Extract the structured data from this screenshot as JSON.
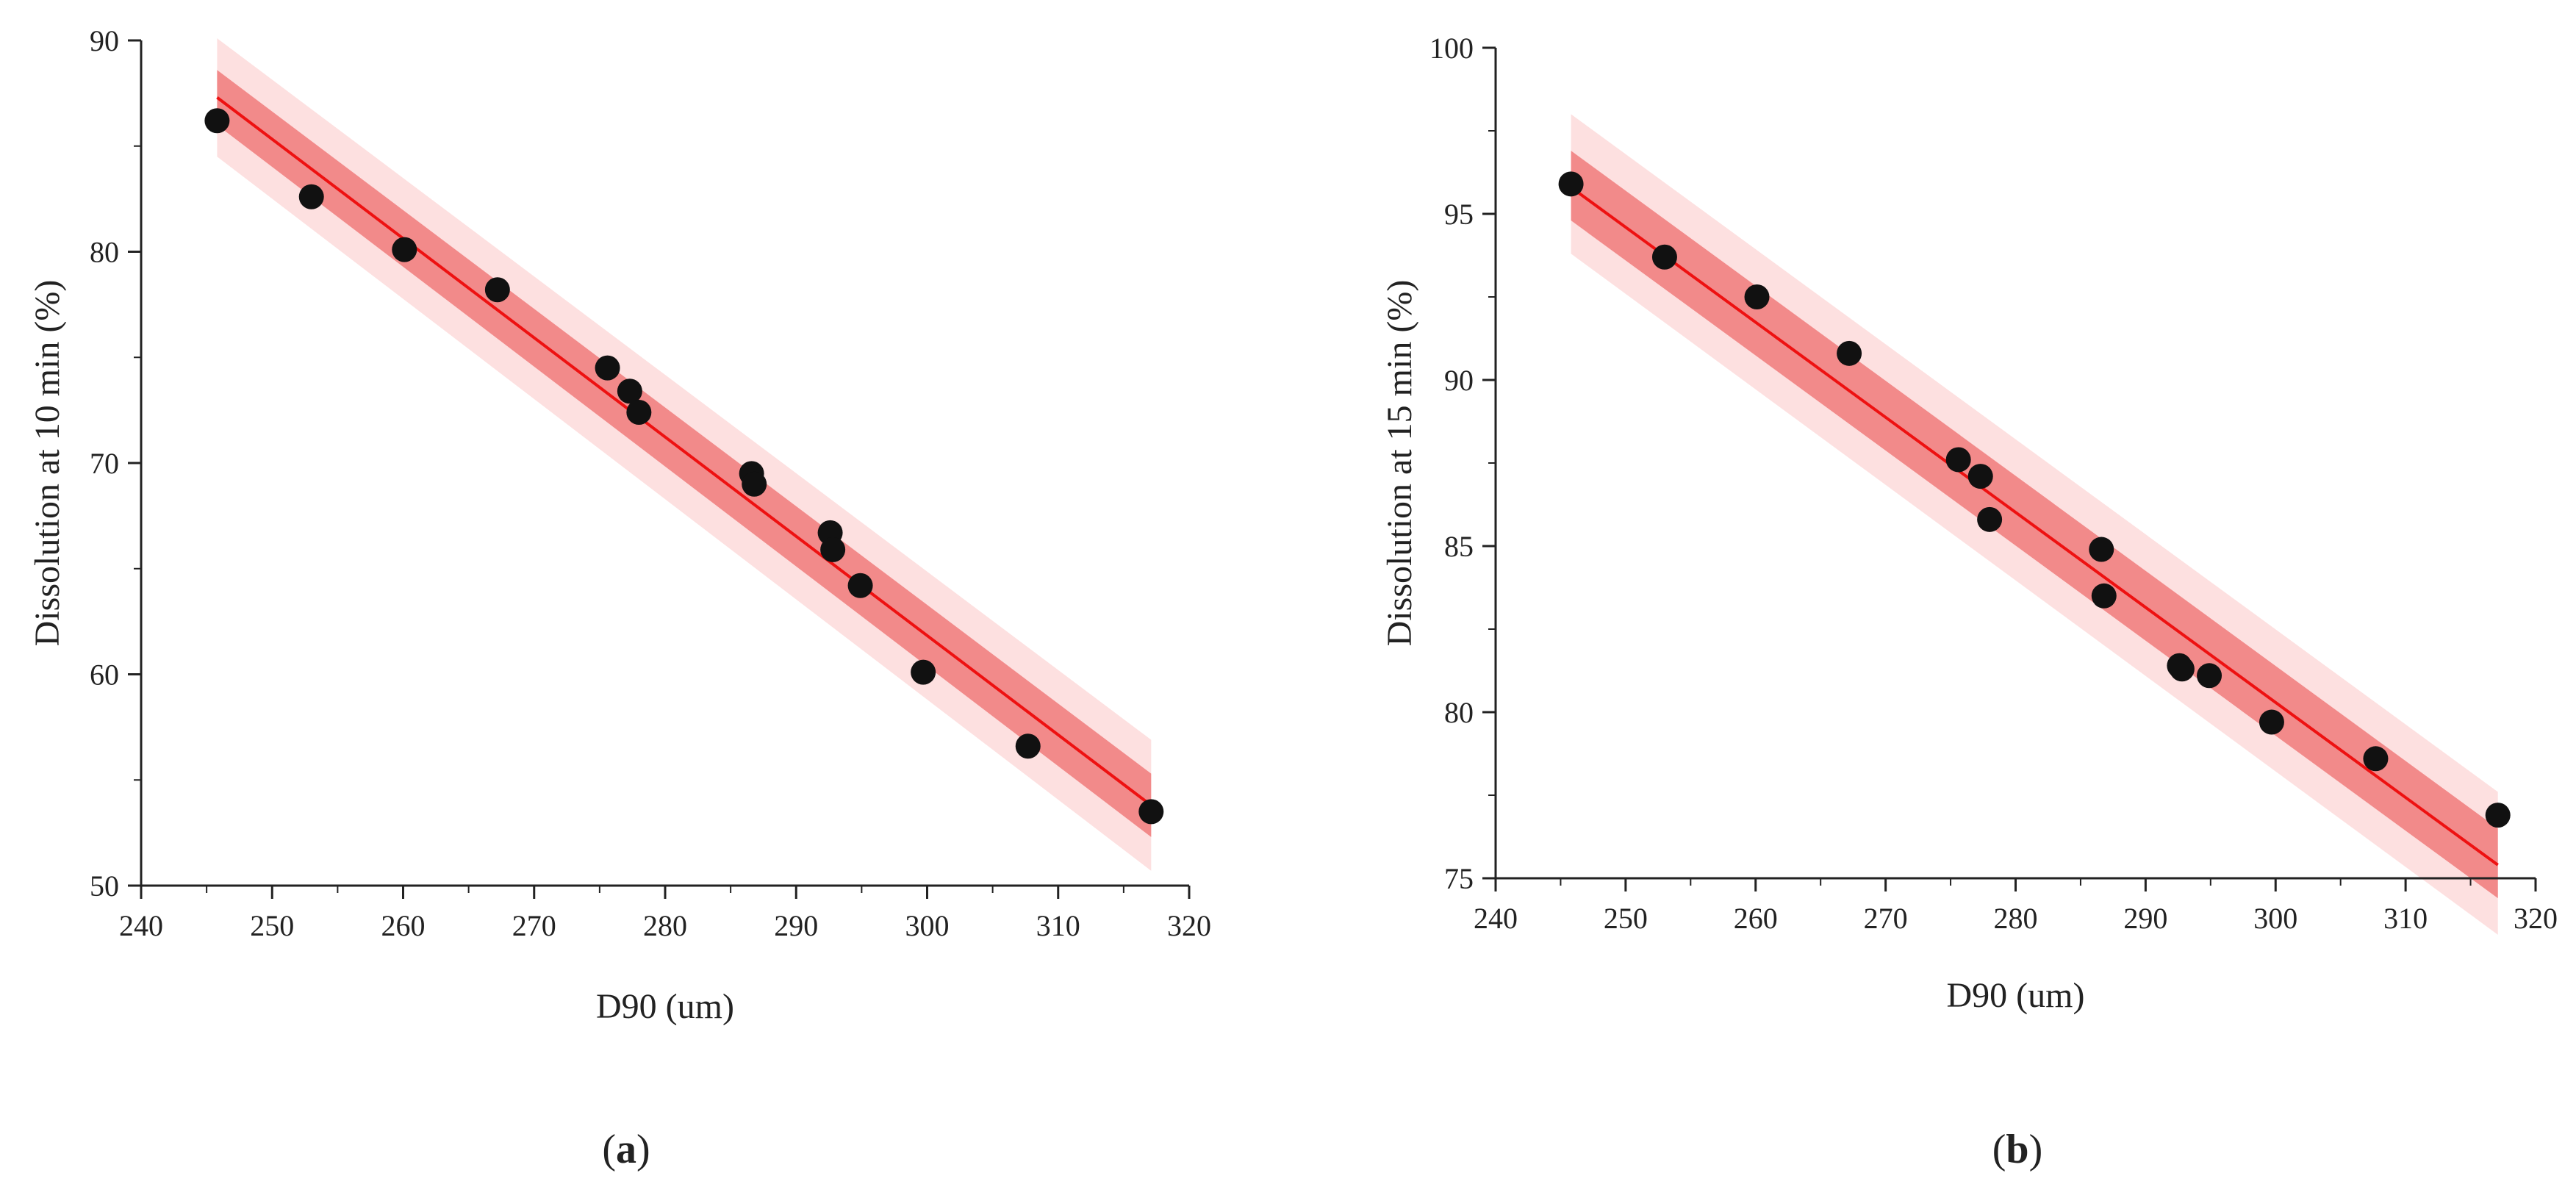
{
  "colors": {
    "fit_line": "#ee1111",
    "confidence_band": "#f28a8a",
    "prediction_band": "#fde0e0",
    "point": "#111111",
    "axis": "#222222"
  },
  "chart_data": [
    {
      "type": "scatter",
      "panel_label": "(a)",
      "panel_letter": "a",
      "xlabel": "D90 (um)",
      "ylabel": "Dissolution at 10 min (%)",
      "xlim": [
        240,
        320
      ],
      "ylim": [
        50,
        90
      ],
      "xticks": [
        "240",
        "250",
        "260",
        "270",
        "280",
        "290",
        "300",
        "310",
        "320"
      ],
      "yticks": [
        "50",
        "60",
        "70",
        "80",
        "90"
      ],
      "points": [
        {
          "x": 245.8,
          "y": 86.2
        },
        {
          "x": 253.0,
          "y": 82.6
        },
        {
          "x": 260.1,
          "y": 80.1
        },
        {
          "x": 267.2,
          "y": 78.2
        },
        {
          "x": 275.6,
          "y": 74.5
        },
        {
          "x": 277.3,
          "y": 73.4
        },
        {
          "x": 278.0,
          "y": 72.4
        },
        {
          "x": 286.6,
          "y": 69.5
        },
        {
          "x": 286.8,
          "y": 69.0
        },
        {
          "x": 292.6,
          "y": 66.7
        },
        {
          "x": 292.8,
          "y": 65.9
        },
        {
          "x": 294.9,
          "y": 64.2
        },
        {
          "x": 299.7,
          "y": 60.1
        },
        {
          "x": 307.7,
          "y": 56.6
        },
        {
          "x": 317.1,
          "y": 53.5
        }
      ],
      "fit": {
        "x": [
          245.8,
          317.1
        ],
        "y": [
          87.3,
          53.8
        ]
      },
      "confidence_band": {
        "x": [
          245.8,
          317.1
        ],
        "upper": [
          88.6,
          55.3
        ],
        "lower": [
          86.0,
          52.3
        ]
      },
      "prediction_band": {
        "x": [
          245.8,
          317.1
        ],
        "upper": [
          90.1,
          56.9
        ],
        "lower": [
          84.5,
          50.7
        ]
      }
    },
    {
      "type": "scatter",
      "panel_label": "(b)",
      "panel_letter": "b",
      "xlabel": "D90 (um)",
      "ylabel": "Dissolution at 15 min (%)",
      "xlim": [
        240,
        320
      ],
      "ylim": [
        75,
        100
      ],
      "xticks": [
        "240",
        "250",
        "260",
        "270",
        "280",
        "290",
        "300",
        "310",
        "320"
      ],
      "yticks": [
        "75",
        "80",
        "85",
        "90",
        "95",
        "100"
      ],
      "points": [
        {
          "x": 245.8,
          "y": 95.9
        },
        {
          "x": 253.0,
          "y": 93.7
        },
        {
          "x": 260.1,
          "y": 92.5
        },
        {
          "x": 267.2,
          "y": 90.8
        },
        {
          "x": 275.6,
          "y": 87.6
        },
        {
          "x": 277.3,
          "y": 87.1
        },
        {
          "x": 278.0,
          "y": 85.8
        },
        {
          "x": 286.6,
          "y": 84.9
        },
        {
          "x": 286.8,
          "y": 83.5
        },
        {
          "x": 292.6,
          "y": 81.4
        },
        {
          "x": 292.8,
          "y": 81.3
        },
        {
          "x": 294.9,
          "y": 81.1
        },
        {
          "x": 299.7,
          "y": 79.7
        },
        {
          "x": 307.7,
          "y": 78.6
        },
        {
          "x": 317.1,
          "y": 76.9
        }
      ],
      "fit": {
        "x": [
          245.8,
          317.1
        ],
        "y": [
          95.8,
          75.4
        ]
      },
      "confidence_band": {
        "x": [
          245.8,
          317.1
        ],
        "upper": [
          96.9,
          76.5
        ],
        "lower": [
          94.8,
          74.4
        ]
      },
      "prediction_band": {
        "x": [
          245.8,
          317.1
        ],
        "upper": [
          98.0,
          77.6
        ],
        "lower": [
          93.8,
          73.3
        ]
      }
    }
  ]
}
